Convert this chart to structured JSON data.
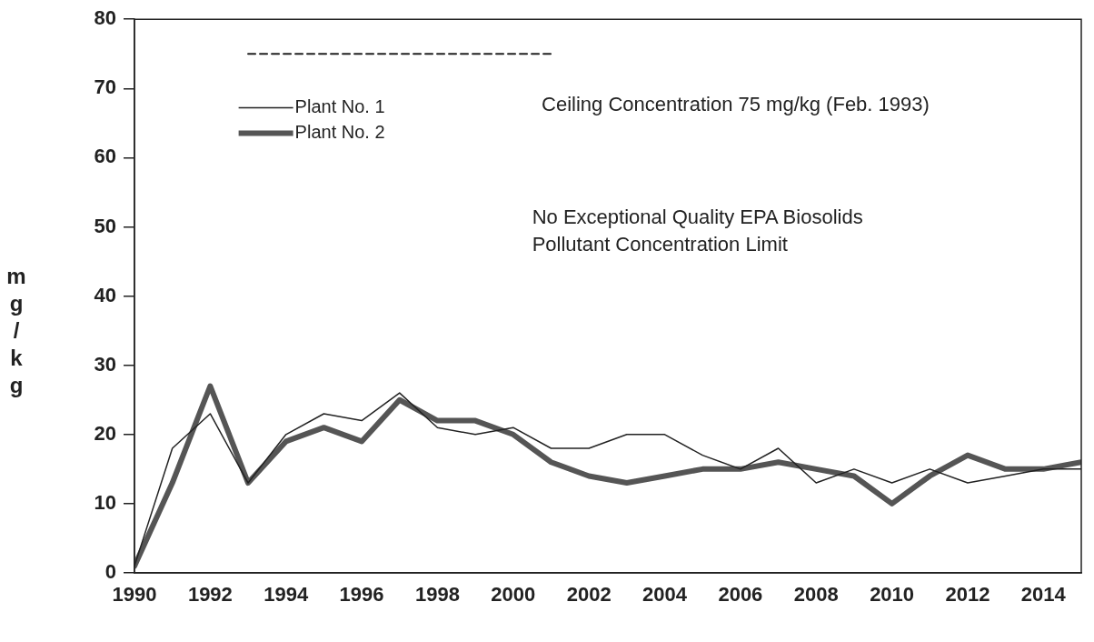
{
  "chart_data": {
    "type": "line",
    "ylabel": "mg/kg",
    "x": [
      1990,
      1991,
      1992,
      1993,
      1994,
      1995,
      1996,
      1997,
      1998,
      1999,
      2000,
      2001,
      2002,
      2003,
      2004,
      2005,
      2006,
      2007,
      2008,
      2009,
      2010,
      2011,
      2012,
      2013,
      2014,
      2015
    ],
    "xlim": [
      1990,
      2015
    ],
    "xticks": [
      1990,
      1992,
      1994,
      1996,
      1998,
      2000,
      2002,
      2004,
      2006,
      2008,
      2010,
      2012,
      2014
    ],
    "ylim": [
      0,
      80
    ],
    "yticks": [
      0,
      10,
      20,
      30,
      40,
      50,
      60,
      70,
      80
    ],
    "series": [
      {
        "name": "Plant No. 1",
        "color": "#222222",
        "line_style": "solid",
        "values": [
          1,
          18,
          23,
          13,
          20,
          23,
          22,
          26,
          21,
          20,
          21,
          18,
          18,
          20,
          20,
          17,
          15,
          18,
          13,
          15,
          13,
          15,
          13,
          14,
          15,
          15
        ]
      },
      {
        "name": "Plant No. 2",
        "color": "#555555",
        "line_style": "solid",
        "values": [
          1,
          13,
          27,
          13,
          19,
          21,
          19,
          25,
          22,
          22,
          20,
          16,
          14,
          13,
          14,
          15,
          15,
          16,
          15,
          14,
          10,
          14,
          17,
          15,
          15,
          16
        ]
      },
      {
        "color": "#222222",
        "line_style": "dashed",
        "x": [
          1993,
          2001
        ],
        "values": [
          75,
          75
        ]
      }
    ],
    "annotations": [
      "Ceiling Concentration 75 mg/kg (Feb. 1993)",
      "No Exceptional Quality EPA Biosolids\nPollutant Concentration Limit"
    ],
    "legend": "top left",
    "marker": "none",
    "grid": false
  }
}
